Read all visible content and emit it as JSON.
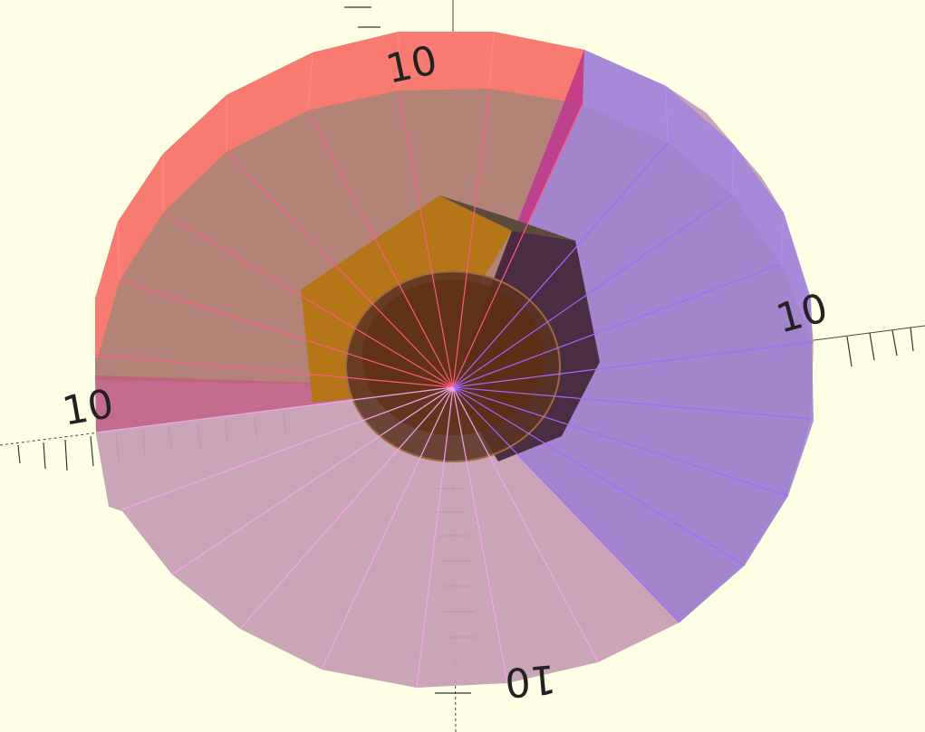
{
  "viewer": {
    "background": "#ffffe5",
    "axis_labels": {
      "top": "10",
      "right": "10",
      "left": "10",
      "bottom": "10"
    },
    "colors": {
      "red_face": "#ff6f6f",
      "purple_face": "#9b7fd0",
      "pink_face": "#c6a0b4",
      "nut_orange": "#b97c12",
      "nut_dark": "#3c2334",
      "edge_red": "#ff4f7f",
      "edge_purple": "#a36bff",
      "edge_pink": "#f4a2e9"
    }
  }
}
